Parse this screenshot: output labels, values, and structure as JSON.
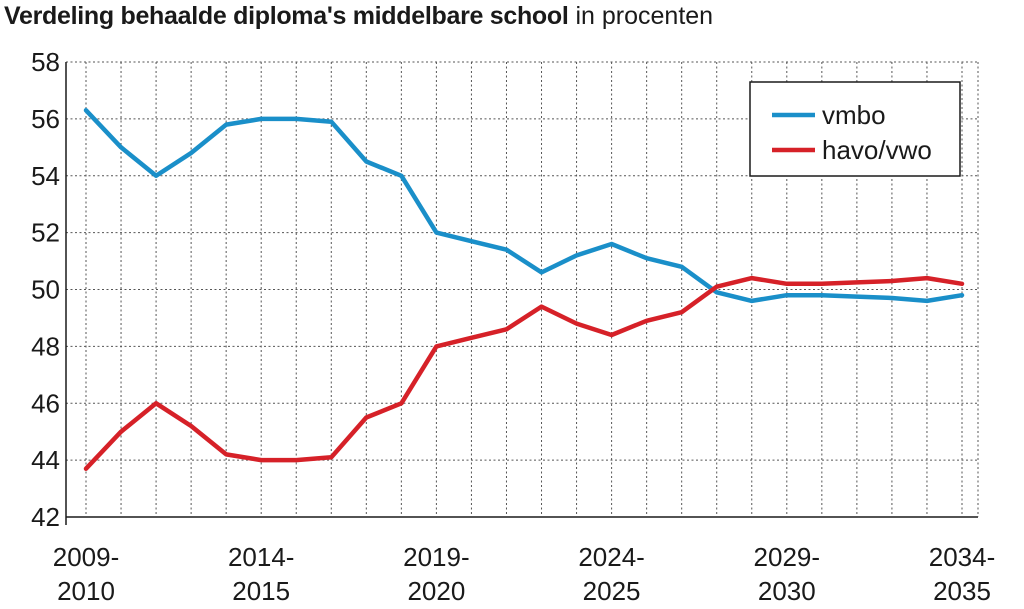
{
  "title": {
    "main": "Verdeling behaalde diploma's middelbare school",
    "sub": "in procenten"
  },
  "chart_data": {
    "type": "line",
    "title": "Verdeling behaalde diploma's middelbare school",
    "subtitle": "in procenten",
    "xlabel": "",
    "ylabel": "",
    "ylim": [
      42,
      58
    ],
    "yticks": [
      42,
      44,
      46,
      48,
      50,
      52,
      54,
      56,
      58
    ],
    "xtick_labels": [
      [
        "2009-",
        "2010"
      ],
      [
        "2014-",
        "2015"
      ],
      [
        "2019-",
        "2020"
      ],
      [
        "2024-",
        "2025"
      ],
      [
        "2029-",
        "2030"
      ],
      [
        "2034-",
        "2035"
      ]
    ],
    "x": [
      "2009-2010",
      "2010-2011",
      "2011-2012",
      "2012-2013",
      "2013-2014",
      "2014-2015",
      "2015-2016",
      "2016-2017",
      "2017-2018",
      "2018-2019",
      "2019-2020",
      "2020-2021",
      "2021-2022",
      "2022-2023",
      "2023-2024",
      "2024-2025",
      "2025-2026",
      "2026-2027",
      "2027-2028",
      "2028-2029",
      "2029-2030",
      "2030-2031",
      "2031-2032",
      "2032-2033",
      "2033-2034",
      "2034-2035"
    ],
    "grid": true,
    "legend_position": "top-right",
    "series": [
      {
        "name": "vmbo",
        "color": "#1a8fc9",
        "values": [
          56.3,
          55.0,
          54.0,
          54.8,
          55.8,
          56.0,
          56.0,
          55.9,
          54.5,
          54.0,
          52.0,
          51.7,
          51.4,
          50.6,
          51.2,
          51.6,
          51.1,
          50.8,
          49.9,
          49.6,
          49.8,
          49.8,
          49.75,
          49.7,
          49.6,
          49.8
        ]
      },
      {
        "name": "havo/vwo",
        "color": "#d62128",
        "values": [
          43.7,
          45.0,
          46.0,
          45.2,
          44.2,
          44.0,
          44.0,
          44.1,
          45.5,
          46.0,
          48.0,
          48.3,
          48.6,
          49.4,
          48.8,
          48.4,
          48.9,
          49.2,
          50.1,
          50.4,
          50.2,
          50.2,
          50.25,
          50.3,
          50.4,
          50.2
        ]
      }
    ]
  }
}
